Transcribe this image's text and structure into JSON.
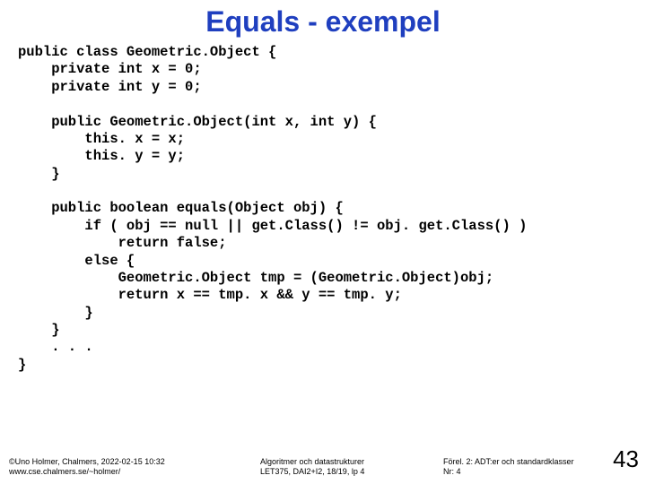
{
  "title": {
    "text": "Equals - exempel",
    "color": "#1f3fbf",
    "fontsize": 32
  },
  "code": {
    "color": "#000000",
    "fontsize": 15.5,
    "lines": [
      "public class Geometric.Object {",
      "    private int x = 0;",
      "    private int y = 0;",
      "",
      "    public Geometric.Object(int x, int y) {",
      "        this. x = x;",
      "        this. y = y;",
      "    }",
      "",
      "    public boolean equals(Object obj) {",
      "        if ( obj == null || get.Class() != obj. get.Class() )",
      "            return false;",
      "        else {",
      "            Geometric.Object tmp = (Geometric.Object)obj;",
      "            return x == tmp. x && y == tmp. y;",
      "        }",
      "    }",
      "    . . .",
      "}"
    ]
  },
  "footer": {
    "left_line1": "©Uno Holmer, Chalmers, 2022-02-15 10:32",
    "left_line2": "www.cse.chalmers.se/~holmer/",
    "center_line1": "Algoritmer och datastrukturer",
    "center_line2": "LET375, DAI2+I2, 18/19, lp 4",
    "right_line1": "Förel. 2: ADT:er och standardklasser",
    "right_line2": "Nr: 4",
    "color": "#000000"
  },
  "pagenum": {
    "text": "43",
    "color": "#000000"
  }
}
